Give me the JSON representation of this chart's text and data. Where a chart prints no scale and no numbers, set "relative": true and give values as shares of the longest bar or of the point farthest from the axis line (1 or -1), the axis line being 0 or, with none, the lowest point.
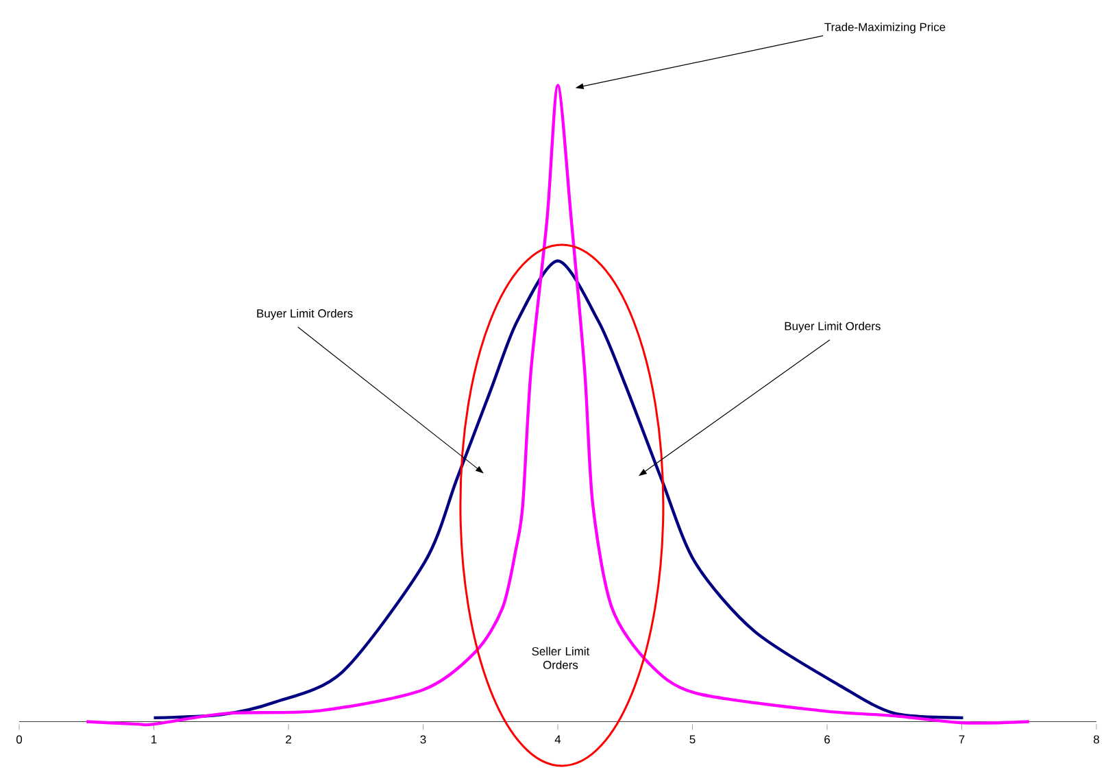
{
  "chart_data": {
    "type": "line",
    "relative": true,
    "xlim": [
      0,
      8
    ],
    "xticks": [
      0,
      1,
      2,
      3,
      4,
      5,
      6,
      7,
      8
    ],
    "grid": false,
    "marker": "none",
    "line_style": "solid",
    "series": [
      {
        "color": "#000080",
        "x": [
          1.0,
          1.5,
          1.89,
          2.4,
          3.01,
          3.25,
          3.5,
          3.7,
          4.0,
          4.3,
          4.5,
          4.77,
          5.02,
          5.46,
          6.1,
          6.5,
          7.01
        ],
        "values": [
          0.006,
          0.011,
          0.03,
          0.078,
          0.25,
          0.381,
          0.52,
          0.63,
          0.724,
          0.63,
          0.53,
          0.381,
          0.25,
          0.142,
          0.056,
          0.013,
          0.006
        ]
      },
      {
        "color": "#ff00ff",
        "x": [
          0.5,
          0.875,
          1.0,
          1.55,
          2.23,
          3.0,
          3.39,
          3.59,
          3.69,
          3.74,
          3.8,
          3.92,
          4.0,
          4.1,
          4.2,
          4.26,
          4.4,
          4.67,
          5.02,
          5.96,
          6.5,
          7.01,
          7.5
        ],
        "values": [
          0,
          -0.004,
          -0.004,
          0.013,
          0.017,
          0.05,
          0.11,
          0.179,
          0.272,
          0.341,
          0.55,
          0.789,
          1,
          0.789,
          0.55,
          0.341,
          0.18,
          0.093,
          0.045,
          0.017,
          0.009,
          -0.002,
          0
        ]
      }
    ],
    "annotations": [
      "Trade-Maximizing Price",
      "Buyer Limit Orders",
      "Buyer Limit Orders",
      "Seller Limit Orders"
    ]
  }
}
